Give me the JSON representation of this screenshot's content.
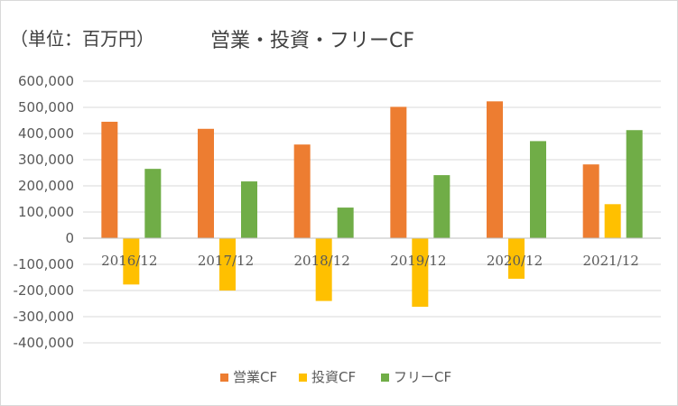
{
  "colors": {
    "operating": "#ED7D31",
    "investing": "#FFC000",
    "free": "#70AD47",
    "grid": "#d9d9d9",
    "text": "#595959"
  },
  "chart_data": {
    "type": "bar",
    "unit_label": "（単位：百万円）",
    "title": "営業・投資・フリーCF",
    "categories": [
      "2016/12",
      "2017/12",
      "2018/12",
      "2019/12",
      "2020/12",
      "2021/12"
    ],
    "series": [
      {
        "name": "営業CF",
        "values": [
          445000,
          418000,
          358000,
          502000,
          523000,
          282000
        ]
      },
      {
        "name": "投資CF",
        "values": [
          -177000,
          -200000,
          -240000,
          -262000,
          -155000,
          130000
        ]
      },
      {
        "name": "フリーCF",
        "values": [
          265000,
          217000,
          117000,
          241000,
          371000,
          413000
        ]
      }
    ],
    "ylim": [
      -400000,
      600000
    ],
    "yticks": [
      "600,000",
      "500,000",
      "400,000",
      "300,000",
      "200,000",
      "100,000",
      "0",
      "-100,000",
      "-200,000",
      "-300,000",
      "-400,000"
    ],
    "grid": true,
    "legend_position": "bottom"
  }
}
